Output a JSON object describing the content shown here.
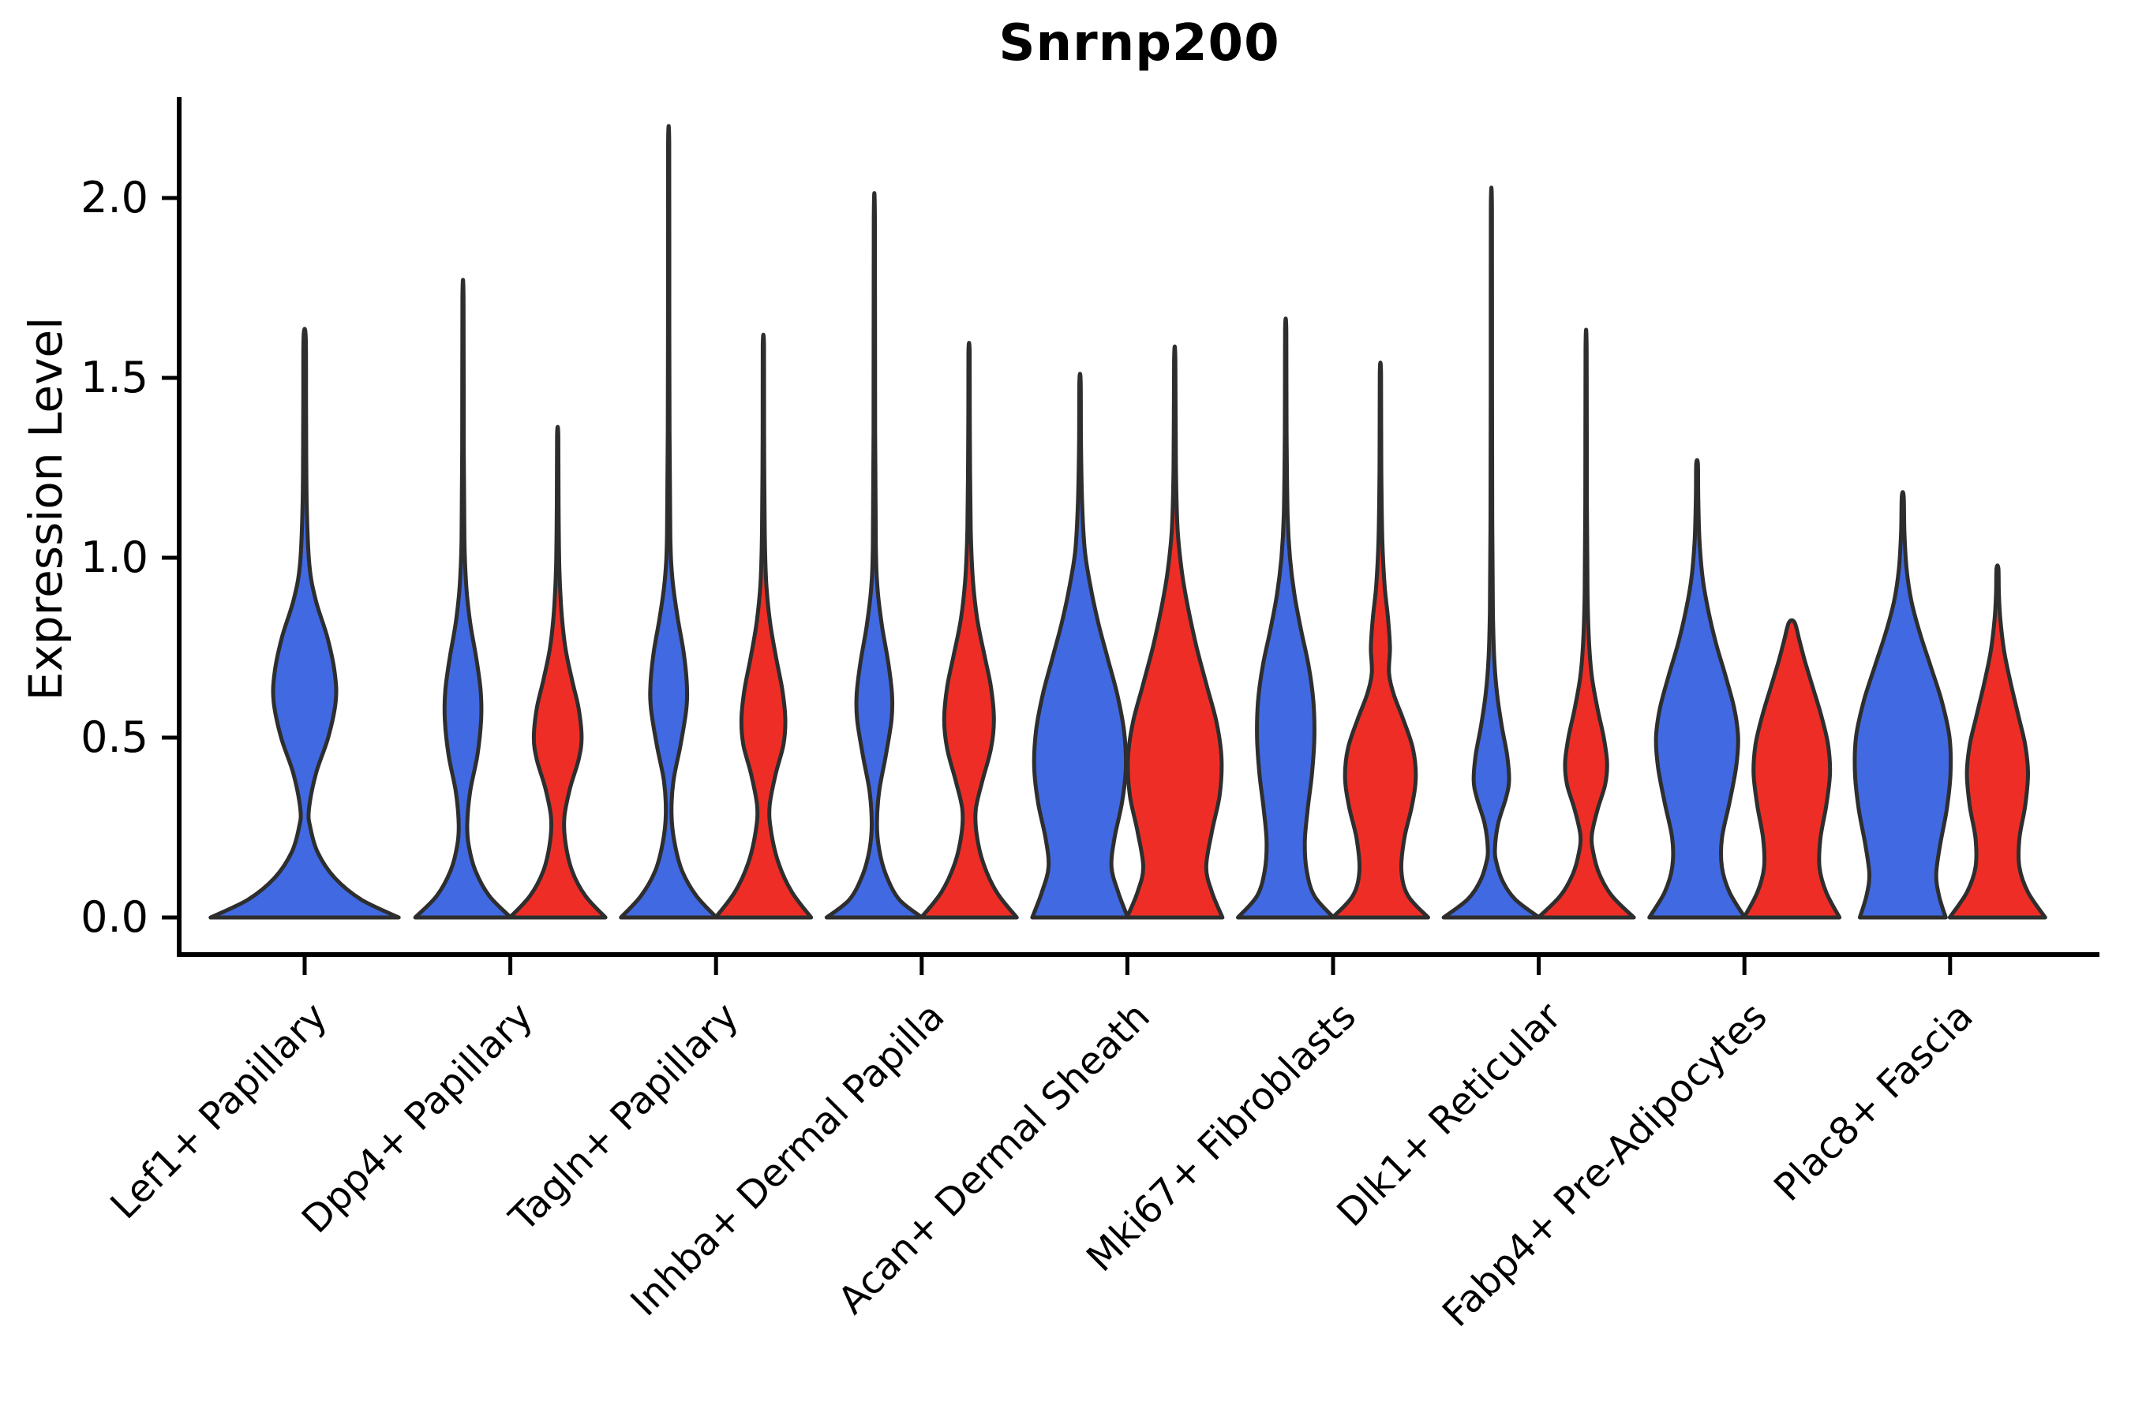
{
  "chart_data": {
    "type": "violin",
    "title": "Snrnp200",
    "ylabel": "Expression Level",
    "xlabel": "",
    "grid": false,
    "legend_position": "none",
    "ylim": [
      -0.1,
      2.28
    ],
    "yticks": [
      0.0,
      0.5,
      1.0,
      1.5,
      2.0
    ],
    "ytick_labels": [
      "0.0",
      "0.5",
      "1.0",
      "1.5",
      "2.0"
    ],
    "baseline_value": 0.0,
    "categories": [
      "Lef1+ Papillary",
      "Dpp4+ Papillary",
      "Tagln+ Papillary",
      "Inhba+ Dermal Papilla",
      "Acan+ Dermal Sheath",
      "Mki67+ Fibroblasts",
      "Dlk1+ Reticular",
      "Fabp4+ Pre-Adipocytes",
      "Plac8+ Fascia"
    ],
    "colors": {
      "group1_blue": "#4169E1",
      "group2_red": "#EE2E26",
      "outline": "#2e2e2e",
      "axis": "#000000"
    },
    "series": [
      {
        "name": "group1-blue",
        "color": "#4169E1",
        "max_expression": [
          1.61,
          1.72,
          2.15,
          1.94,
          1.49,
          1.63,
          1.97,
          1.26,
          1.17
        ]
      },
      {
        "name": "group2-red",
        "color": "#EE2E26",
        "max_expression": [
          null,
          1.34,
          1.59,
          1.57,
          1.55,
          1.51,
          1.58,
          0.82,
          0.97
        ]
      }
    ],
    "violins": [
      {
        "category": 0,
        "group": "group1_blue",
        "position": "center",
        "width_scale": 1.97,
        "max": 1.61,
        "profile": [
          [
            0,
            1.0
          ],
          [
            0.05,
            0.6
          ],
          [
            0.11,
            0.32
          ],
          [
            0.18,
            0.14
          ],
          [
            0.25,
            0.06
          ],
          [
            0.3,
            0.045
          ],
          [
            0.4,
            0.12
          ],
          [
            0.5,
            0.25
          ],
          [
            0.6,
            0.33
          ],
          [
            0.68,
            0.32
          ],
          [
            0.78,
            0.24
          ],
          [
            0.88,
            0.12
          ],
          [
            0.98,
            0.05
          ],
          [
            1.15,
            0.022
          ],
          [
            1.4,
            0.015
          ],
          [
            1.61,
            0.012
          ]
        ]
      },
      {
        "category": 1,
        "group": "group1_blue",
        "position": "left",
        "width_scale": 1,
        "max": 1.72,
        "profile": [
          [
            0,
            1.0
          ],
          [
            0.06,
            0.55
          ],
          [
            0.13,
            0.26
          ],
          [
            0.2,
            0.12
          ],
          [
            0.26,
            0.09
          ],
          [
            0.35,
            0.15
          ],
          [
            0.45,
            0.3
          ],
          [
            0.55,
            0.38
          ],
          [
            0.63,
            0.37
          ],
          [
            0.72,
            0.28
          ],
          [
            0.82,
            0.15
          ],
          [
            0.92,
            0.07
          ],
          [
            1.05,
            0.03
          ],
          [
            1.3,
            0.017
          ],
          [
            1.72,
            0.012
          ]
        ]
      },
      {
        "category": 1,
        "group": "group2_red",
        "position": "right",
        "width_scale": 1,
        "max": 1.34,
        "profile": [
          [
            0,
            1.0
          ],
          [
            0.06,
            0.58
          ],
          [
            0.13,
            0.3
          ],
          [
            0.21,
            0.16
          ],
          [
            0.28,
            0.14
          ],
          [
            0.36,
            0.26
          ],
          [
            0.44,
            0.44
          ],
          [
            0.5,
            0.5
          ],
          [
            0.58,
            0.44
          ],
          [
            0.66,
            0.3
          ],
          [
            0.75,
            0.16
          ],
          [
            0.85,
            0.08
          ],
          [
            0.97,
            0.035
          ],
          [
            1.15,
            0.018
          ],
          [
            1.34,
            0.013
          ]
        ]
      },
      {
        "category": 2,
        "group": "group1_blue",
        "position": "left",
        "width_scale": 1,
        "max": 2.15,
        "profile": [
          [
            0,
            1.0
          ],
          [
            0.06,
            0.58
          ],
          [
            0.13,
            0.28
          ],
          [
            0.21,
            0.12
          ],
          [
            0.29,
            0.06
          ],
          [
            0.38,
            0.1
          ],
          [
            0.48,
            0.25
          ],
          [
            0.58,
            0.37
          ],
          [
            0.65,
            0.38
          ],
          [
            0.74,
            0.31
          ],
          [
            0.84,
            0.18
          ],
          [
            0.94,
            0.08
          ],
          [
            1.06,
            0.035
          ],
          [
            1.35,
            0.018
          ],
          [
            1.75,
            0.013
          ],
          [
            2.15,
            0.012
          ]
        ]
      },
      {
        "category": 2,
        "group": "group2_red",
        "position": "right",
        "width_scale": 1,
        "max": 1.59,
        "profile": [
          [
            0,
            1.0
          ],
          [
            0.07,
            0.6
          ],
          [
            0.15,
            0.32
          ],
          [
            0.24,
            0.16
          ],
          [
            0.31,
            0.13
          ],
          [
            0.4,
            0.26
          ],
          [
            0.48,
            0.42
          ],
          [
            0.55,
            0.46
          ],
          [
            0.63,
            0.4
          ],
          [
            0.72,
            0.27
          ],
          [
            0.82,
            0.14
          ],
          [
            0.93,
            0.06
          ],
          [
            1.08,
            0.028
          ],
          [
            1.35,
            0.015
          ],
          [
            1.59,
            0.013
          ]
        ]
      },
      {
        "category": 3,
        "group": "group1_blue",
        "position": "left",
        "width_scale": 1,
        "max": 1.94,
        "profile": [
          [
            0,
            1.0
          ],
          [
            0.05,
            0.52
          ],
          [
            0.12,
            0.24
          ],
          [
            0.19,
            0.1
          ],
          [
            0.26,
            0.055
          ],
          [
            0.35,
            0.1
          ],
          [
            0.45,
            0.24
          ],
          [
            0.55,
            0.36
          ],
          [
            0.62,
            0.37
          ],
          [
            0.71,
            0.29
          ],
          [
            0.81,
            0.16
          ],
          [
            0.91,
            0.07
          ],
          [
            1.03,
            0.032
          ],
          [
            1.35,
            0.016
          ],
          [
            1.94,
            0.012
          ]
        ]
      },
      {
        "category": 3,
        "group": "group2_red",
        "position": "right",
        "width_scale": 1,
        "max": 1.57,
        "profile": [
          [
            0,
            1.0
          ],
          [
            0.07,
            0.58
          ],
          [
            0.15,
            0.3
          ],
          [
            0.23,
            0.16
          ],
          [
            0.3,
            0.14
          ],
          [
            0.38,
            0.28
          ],
          [
            0.47,
            0.46
          ],
          [
            0.55,
            0.52
          ],
          [
            0.64,
            0.46
          ],
          [
            0.73,
            0.32
          ],
          [
            0.83,
            0.17
          ],
          [
            0.94,
            0.08
          ],
          [
            1.08,
            0.035
          ],
          [
            1.35,
            0.016
          ],
          [
            1.57,
            0.013
          ]
        ]
      },
      {
        "category": 4,
        "group": "group1_blue",
        "position": "left",
        "width_scale": 1,
        "max": 1.49,
        "profile": [
          [
            0,
            1.0
          ],
          [
            0.07,
            0.8
          ],
          [
            0.14,
            0.66
          ],
          [
            0.22,
            0.72
          ],
          [
            0.32,
            0.88
          ],
          [
            0.42,
            0.96
          ],
          [
            0.52,
            0.92
          ],
          [
            0.62,
            0.78
          ],
          [
            0.72,
            0.58
          ],
          [
            0.82,
            0.38
          ],
          [
            0.92,
            0.22
          ],
          [
            1.02,
            0.1
          ],
          [
            1.15,
            0.045
          ],
          [
            1.32,
            0.02
          ],
          [
            1.49,
            0.014
          ]
        ]
      },
      {
        "category": 4,
        "group": "group2_red",
        "position": "right",
        "width_scale": 1,
        "max": 1.55,
        "profile": [
          [
            0,
            1.0
          ],
          [
            0.07,
            0.78
          ],
          [
            0.14,
            0.66
          ],
          [
            0.24,
            0.78
          ],
          [
            0.34,
            0.94
          ],
          [
            0.44,
            0.98
          ],
          [
            0.54,
            0.88
          ],
          [
            0.64,
            0.68
          ],
          [
            0.75,
            0.46
          ],
          [
            0.86,
            0.28
          ],
          [
            0.96,
            0.15
          ],
          [
            1.08,
            0.06
          ],
          [
            1.25,
            0.025
          ],
          [
            1.55,
            0.013
          ]
        ]
      },
      {
        "category": 5,
        "group": "group1_blue",
        "position": "left",
        "width_scale": 1,
        "max": 1.63,
        "profile": [
          [
            0,
            1.0
          ],
          [
            0.06,
            0.6
          ],
          [
            0.13,
            0.44
          ],
          [
            0.21,
            0.4
          ],
          [
            0.3,
            0.46
          ],
          [
            0.4,
            0.55
          ],
          [
            0.5,
            0.6
          ],
          [
            0.6,
            0.58
          ],
          [
            0.7,
            0.48
          ],
          [
            0.8,
            0.32
          ],
          [
            0.9,
            0.18
          ],
          [
            1.0,
            0.09
          ],
          [
            1.12,
            0.04
          ],
          [
            1.35,
            0.018
          ],
          [
            1.63,
            0.013
          ]
        ]
      },
      {
        "category": 5,
        "group": "group2_red",
        "position": "right",
        "width_scale": 1,
        "max": 1.51,
        "profile": [
          [
            0,
            1.0
          ],
          [
            0.06,
            0.58
          ],
          [
            0.13,
            0.44
          ],
          [
            0.22,
            0.5
          ],
          [
            0.31,
            0.66
          ],
          [
            0.39,
            0.74
          ],
          [
            0.47,
            0.68
          ],
          [
            0.55,
            0.48
          ],
          [
            0.62,
            0.28
          ],
          [
            0.68,
            0.18
          ],
          [
            0.75,
            0.2
          ],
          [
            0.83,
            0.16
          ],
          [
            0.92,
            0.09
          ],
          [
            1.05,
            0.04
          ],
          [
            1.25,
            0.018
          ],
          [
            1.51,
            0.013
          ]
        ]
      },
      {
        "category": 6,
        "group": "group1_blue",
        "position": "left",
        "width_scale": 1,
        "max": 1.97,
        "profile": [
          [
            0,
            1.0
          ],
          [
            0.05,
            0.5
          ],
          [
            0.1,
            0.24
          ],
          [
            0.15,
            0.11
          ],
          [
            0.19,
            0.075
          ],
          [
            0.26,
            0.14
          ],
          [
            0.33,
            0.3
          ],
          [
            0.38,
            0.37
          ],
          [
            0.45,
            0.33
          ],
          [
            0.53,
            0.22
          ],
          [
            0.62,
            0.12
          ],
          [
            0.72,
            0.06
          ],
          [
            0.85,
            0.032
          ],
          [
            1.1,
            0.018
          ],
          [
            1.5,
            0.013
          ],
          [
            1.97,
            0.012
          ]
        ]
      },
      {
        "category": 6,
        "group": "group2_red",
        "position": "right",
        "width_scale": 1,
        "max": 1.58,
        "profile": [
          [
            0,
            1.0
          ],
          [
            0.06,
            0.54
          ],
          [
            0.12,
            0.28
          ],
          [
            0.18,
            0.15
          ],
          [
            0.23,
            0.12
          ],
          [
            0.3,
            0.24
          ],
          [
            0.37,
            0.4
          ],
          [
            0.43,
            0.44
          ],
          [
            0.5,
            0.37
          ],
          [
            0.58,
            0.24
          ],
          [
            0.67,
            0.12
          ],
          [
            0.77,
            0.06
          ],
          [
            0.9,
            0.03
          ],
          [
            1.15,
            0.016
          ],
          [
            1.58,
            0.012
          ]
        ]
      },
      {
        "category": 7,
        "group": "group1_blue",
        "position": "left",
        "width_scale": 1,
        "max": 1.26,
        "profile": [
          [
            0,
            1.0
          ],
          [
            0.07,
            0.68
          ],
          [
            0.14,
            0.52
          ],
          [
            0.22,
            0.52
          ],
          [
            0.32,
            0.68
          ],
          [
            0.42,
            0.82
          ],
          [
            0.5,
            0.86
          ],
          [
            0.58,
            0.78
          ],
          [
            0.67,
            0.6
          ],
          [
            0.76,
            0.4
          ],
          [
            0.85,
            0.24
          ],
          [
            0.94,
            0.12
          ],
          [
            1.05,
            0.05
          ],
          [
            1.17,
            0.025
          ],
          [
            1.26,
            0.018
          ]
        ]
      },
      {
        "category": 7,
        "group": "group2_red",
        "position": "right",
        "width_scale": 1,
        "max": 0.82,
        "profile": [
          [
            0,
            1.0
          ],
          [
            0.07,
            0.72
          ],
          [
            0.14,
            0.58
          ],
          [
            0.22,
            0.6
          ],
          [
            0.31,
            0.72
          ],
          [
            0.4,
            0.8
          ],
          [
            0.48,
            0.76
          ],
          [
            0.56,
            0.62
          ],
          [
            0.64,
            0.44
          ],
          [
            0.71,
            0.28
          ],
          [
            0.77,
            0.16
          ],
          [
            0.82,
            0.06
          ]
        ]
      },
      {
        "category": 8,
        "group": "group1_blue",
        "position": "left",
        "width_scale": 1,
        "max": 1.17,
        "profile": [
          [
            0,
            0.9
          ],
          [
            0.06,
            0.76
          ],
          [
            0.12,
            0.7
          ],
          [
            0.2,
            0.78
          ],
          [
            0.3,
            0.92
          ],
          [
            0.4,
            1.0
          ],
          [
            0.5,
            0.98
          ],
          [
            0.6,
            0.82
          ],
          [
            0.7,
            0.58
          ],
          [
            0.79,
            0.36
          ],
          [
            0.88,
            0.18
          ],
          [
            0.97,
            0.08
          ],
          [
            1.07,
            0.035
          ],
          [
            1.17,
            0.02
          ]
        ]
      },
      {
        "category": 8,
        "group": "group2_red",
        "position": "right",
        "width_scale": 1,
        "max": 0.97,
        "profile": [
          [
            0,
            1.0
          ],
          [
            0.07,
            0.64
          ],
          [
            0.14,
            0.46
          ],
          [
            0.22,
            0.46
          ],
          [
            0.31,
            0.58
          ],
          [
            0.4,
            0.64
          ],
          [
            0.48,
            0.58
          ],
          [
            0.56,
            0.44
          ],
          [
            0.65,
            0.28
          ],
          [
            0.74,
            0.14
          ],
          [
            0.83,
            0.06
          ],
          [
            0.9,
            0.03
          ],
          [
            0.97,
            0.02
          ]
        ]
      }
    ]
  }
}
